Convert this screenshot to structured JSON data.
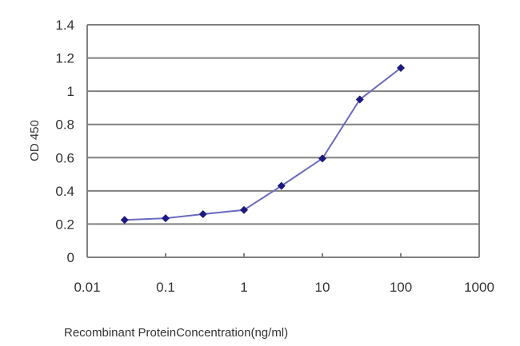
{
  "chart_data": {
    "type": "line",
    "title": "",
    "xlabel": "Recombinant ProteinConcentration(ng/ml)",
    "ylabel": "OD 450",
    "x_scale": "log",
    "xlim": [
      0.01,
      1000
    ],
    "ylim": [
      0,
      1.4
    ],
    "x_ticks": [
      "0.01",
      "0.1",
      "1",
      "10",
      "100",
      "1000"
    ],
    "y_ticks": [
      "0",
      "0.2",
      "0.4",
      "0.6",
      "0.8",
      "1",
      "1.2",
      "1.4"
    ],
    "grid": "horizontal",
    "legend": null,
    "series": [
      {
        "name": "OD 450",
        "color": "#1f1f8f",
        "marker": "diamond",
        "x": [
          0.03,
          0.1,
          0.3,
          1,
          3,
          10,
          30,
          100
        ],
        "values": [
          0.225,
          0.235,
          0.26,
          0.285,
          0.43,
          0.595,
          0.95,
          1.14
        ]
      }
    ]
  },
  "colors": {
    "gridline": "#808080",
    "axis": "#808080",
    "line": "#6b6bc0",
    "marker": "#1a1a80"
  }
}
